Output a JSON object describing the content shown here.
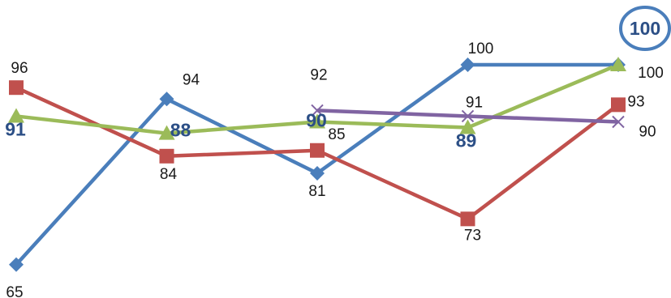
{
  "chart_data": {
    "type": "line",
    "categories": [
      "",
      "",
      "",
      "",
      ""
    ],
    "ylim": [
      60,
      105
    ],
    "grid": false,
    "legend": "none",
    "series": [
      {
        "color": "#4a7ebb",
        "marker": "diamond",
        "values": [
          65,
          94,
          81,
          100,
          100
        ],
        "labels": [
          "65",
          "94",
          "81",
          "100",
          "100"
        ]
      },
      {
        "color": "#c0504d",
        "marker": "square",
        "values": [
          96,
          84,
          85,
          73,
          93
        ],
        "labels": [
          "96",
          "84",
          "85",
          "73",
          "93"
        ]
      },
      {
        "color": "#9bbb59",
        "marker": "triangle",
        "values": [
          91,
          88,
          90,
          89,
          100
        ],
        "labels": [
          "91",
          "88",
          "90",
          "89",
          ""
        ]
      },
      {
        "color": "#8064a2",
        "marker": "x",
        "values": [
          null,
          null,
          92,
          91,
          90
        ],
        "labels": [
          "",
          "",
          "92",
          "91",
          "90"
        ]
      }
    ],
    "highlight": {
      "value": "100",
      "color": "#4a7ebb"
    }
  }
}
